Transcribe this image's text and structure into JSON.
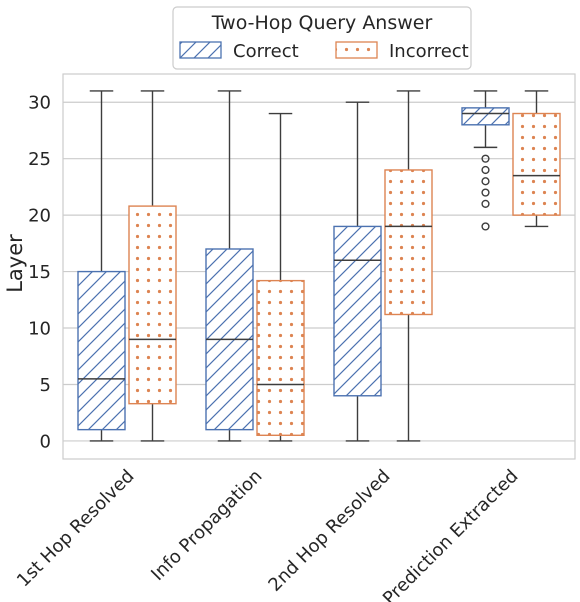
{
  "chart_data": {
    "type": "box",
    "title": "",
    "xlabel": "",
    "ylabel": "Layer",
    "ylim": [
      -1.6,
      32.5
    ],
    "yticks": [
      0,
      5,
      10,
      15,
      20,
      25,
      30
    ],
    "grid": "horizontal",
    "categories": [
      "1st Hop Resolved",
      "Info Propagation",
      "2nd Hop Resolved",
      "Prediction Extracted"
    ],
    "legend": {
      "title": "Two-Hop Query Answer",
      "placement": "top-center",
      "entries": [
        "Correct",
        "Incorrect"
      ]
    },
    "series": [
      {
        "name": "Correct",
        "color": "#4c72b0",
        "pattern": "hatch",
        "boxes": [
          {
            "min": 0,
            "q1": 1,
            "median": 5.5,
            "q3": 15,
            "max": 31,
            "outliers": []
          },
          {
            "min": 0,
            "q1": 1,
            "median": 9,
            "q3": 17,
            "max": 31,
            "outliers": []
          },
          {
            "min": 0,
            "q1": 4,
            "median": 16,
            "q3": 19,
            "max": 30,
            "outliers": []
          },
          {
            "min": 26,
            "q1": 28,
            "median": 29,
            "q3": 29.5,
            "max": 31,
            "outliers": [
              19,
              21,
              22,
              23,
              24,
              25
            ]
          }
        ]
      },
      {
        "name": "Incorrect",
        "color": "#dd8452",
        "pattern": "dots",
        "boxes": [
          {
            "min": 0,
            "q1": 3.3,
            "median": 9,
            "q3": 20.8,
            "max": 31,
            "outliers": []
          },
          {
            "min": 0,
            "q1": 0.5,
            "median": 5,
            "q3": 14.2,
            "max": 29,
            "outliers": []
          },
          {
            "min": 0,
            "q1": 11.2,
            "median": 19,
            "q3": 24,
            "max": 31,
            "outliers": []
          },
          {
            "min": 19,
            "q1": 20,
            "median": 23.5,
            "q3": 29,
            "max": 31,
            "outliers": []
          }
        ]
      }
    ]
  }
}
